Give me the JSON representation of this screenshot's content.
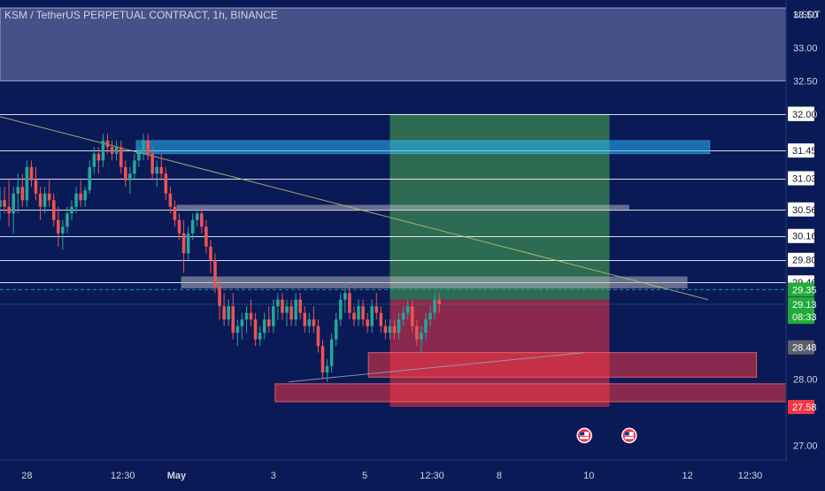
{
  "header": {
    "title": "KSM / TetherUS PERPETUAL CONTRACT, 1h, BINANCE",
    "currency": "USDT"
  },
  "colors": {
    "background": "#0a1a57",
    "bull": "#26a69a",
    "bear": "#ef5350",
    "profit_zone": "#4caf50",
    "stop_zone": "#f23645",
    "supply_zone": "#8d97c7",
    "grid_line": "#ffffff"
  },
  "chart_data": {
    "type": "candlestick",
    "title": "KSM / TetherUS PERPETUAL CONTRACT, 1h, BINANCE",
    "ylabel": "USDT",
    "ylim": [
      26.78,
      33.72
    ],
    "y_ticks": [
      "33.50",
      "33.00",
      "32.50",
      "32.00",
      "28.00",
      "27.00"
    ],
    "x_ticks": [
      "28",
      "12:30",
      "May",
      "3",
      "5",
      "12:30",
      "8",
      "10",
      "12",
      "12:30"
    ],
    "x_tick_bold": [
      "May"
    ],
    "x_tick_x": [
      0.3,
      11.0,
      17.0,
      27.8,
      38.0,
      45.5,
      53.0,
      63.0,
      74.0,
      81.0
    ],
    "xlim": [
      -2.7,
      85.0
    ],
    "price_markers": [
      {
        "label": "32.01",
        "value": 32.01,
        "style": "green"
      },
      {
        "label": "32.00",
        "value": 32.0,
        "style": "line"
      },
      {
        "label": "31.45",
        "value": 31.45,
        "style": "line"
      },
      {
        "label": "31.03",
        "value": 31.03,
        "style": "line"
      },
      {
        "label": "30.56",
        "value": 30.56,
        "style": "line"
      },
      {
        "label": "30.16",
        "value": 30.16,
        "style": "line"
      },
      {
        "label": "29.80",
        "value": 29.8,
        "style": "line"
      },
      {
        "label": "29.46",
        "value": 29.46,
        "style": "line"
      },
      {
        "label": "29.35",
        "value": 29.35,
        "style": "green"
      },
      {
        "label": "29.13",
        "value": 29.13,
        "style": "green"
      },
      {
        "label": "08:33",
        "value": 28.94,
        "style": "green"
      },
      {
        "label": "28.48",
        "value": 28.48,
        "style": "grey"
      },
      {
        "label": "27.58",
        "value": 27.58,
        "style": "red"
      }
    ],
    "horizontal_lines": [
      32.0,
      31.45,
      31.03,
      30.56,
      30.16,
      29.8,
      29.46
    ],
    "zones": [
      {
        "kind": "supply",
        "from": 32.5,
        "to": 33.6,
        "x": [
          -2.7,
          85.0
        ]
      },
      {
        "kind": "resistance",
        "from": 31.4,
        "to": 31.6,
        "x": [
          12.5,
          76.5
        ]
      },
      {
        "kind": "level",
        "from": 30.54,
        "to": 30.63,
        "x": [
          17.0,
          67.5
        ]
      },
      {
        "kind": "level",
        "from": 29.37,
        "to": 29.55,
        "x": [
          17.5,
          74.0
        ]
      },
      {
        "kind": "demand",
        "from": 28.03,
        "to": 28.4,
        "x": [
          38.4,
          81.7
        ]
      },
      {
        "kind": "demand",
        "from": 27.66,
        "to": 27.93,
        "x": [
          28.0,
          85.0
        ]
      }
    ],
    "position": {
      "type": "long",
      "x": [
        40.8,
        65.3
      ],
      "entry": 29.2,
      "target": 32.0,
      "stop": 27.58
    },
    "trendlines": [
      {
        "from": [
          -2.7,
          31.96
        ],
        "to": [
          76.3,
          29.2
        ]
      },
      {
        "from": [
          29.5,
          27.96
        ],
        "to": [
          62.5,
          28.4
        ]
      }
    ],
    "dashed_lines": [
      {
        "value": 29.35,
        "color": "#26a69a",
        "style": "dashed"
      },
      {
        "value": 29.13,
        "color": "#26a69a",
        "style": "dotted"
      }
    ],
    "event_icons": [
      {
        "x": 62.5,
        "value": 27.15
      },
      {
        "x": 67.5,
        "value": 27.15
      }
    ],
    "candles_x_start": -2.7,
    "candles_x_step": 0.5,
    "candles": [
      [
        30.6,
        30.9,
        30.4,
        30.7
      ],
      [
        30.7,
        30.9,
        30.5,
        30.6
      ],
      [
        30.6,
        31.0,
        30.3,
        30.5
      ],
      [
        30.5,
        30.9,
        30.2,
        30.8
      ],
      [
        30.8,
        31.1,
        30.5,
        30.9
      ],
      [
        30.9,
        31.1,
        30.6,
        30.7
      ],
      [
        30.7,
        31.3,
        30.6,
        31.2
      ],
      [
        31.2,
        31.3,
        30.9,
        31.0
      ],
      [
        31.0,
        31.2,
        30.7,
        30.8
      ],
      [
        30.8,
        30.9,
        30.4,
        30.6
      ],
      [
        30.6,
        30.9,
        30.5,
        30.8
      ],
      [
        30.8,
        31.0,
        30.6,
        30.7
      ],
      [
        30.7,
        30.8,
        30.3,
        30.4
      ],
      [
        30.4,
        30.6,
        30.0,
        30.2
      ],
      [
        30.2,
        30.4,
        29.95,
        30.3
      ],
      [
        30.3,
        30.6,
        30.2,
        30.5
      ],
      [
        30.5,
        30.7,
        30.4,
        30.6
      ],
      [
        30.6,
        30.9,
        30.5,
        30.8
      ],
      [
        30.8,
        31.0,
        30.6,
        30.7
      ],
      [
        30.7,
        30.9,
        30.6,
        30.85
      ],
      [
        30.85,
        31.3,
        30.8,
        31.2
      ],
      [
        31.2,
        31.5,
        31.1,
        31.4
      ],
      [
        31.4,
        31.5,
        31.1,
        31.3
      ],
      [
        31.3,
        31.7,
        31.2,
        31.6
      ],
      [
        31.6,
        31.7,
        31.4,
        31.5
      ],
      [
        31.5,
        31.6,
        31.3,
        31.4
      ],
      [
        31.4,
        31.6,
        31.3,
        31.5
      ],
      [
        31.5,
        31.6,
        31.1,
        31.2
      ],
      [
        31.2,
        31.3,
        30.9,
        31.0
      ],
      [
        31.0,
        31.2,
        30.8,
        31.1
      ],
      [
        31.1,
        31.4,
        31.0,
        31.3
      ],
      [
        31.3,
        31.5,
        31.2,
        31.4
      ],
      [
        31.4,
        31.7,
        31.3,
        31.6
      ],
      [
        31.6,
        31.7,
        31.3,
        31.4
      ],
      [
        31.4,
        31.5,
        31.0,
        31.1
      ],
      [
        31.1,
        31.3,
        30.9,
        31.2
      ],
      [
        31.2,
        31.4,
        31.0,
        31.1
      ],
      [
        31.1,
        31.2,
        30.7,
        30.8
      ],
      [
        30.8,
        30.9,
        30.5,
        30.6
      ],
      [
        30.6,
        30.7,
        30.3,
        30.4
      ],
      [
        30.4,
        30.5,
        30.1,
        30.2
      ],
      [
        30.2,
        30.4,
        29.6,
        29.9
      ],
      [
        29.9,
        30.3,
        29.8,
        30.2
      ],
      [
        30.2,
        30.5,
        30.1,
        30.4
      ],
      [
        30.4,
        30.6,
        30.3,
        30.5
      ],
      [
        30.5,
        30.6,
        30.2,
        30.3
      ],
      [
        30.3,
        30.4,
        29.9,
        30.0
      ],
      [
        30.0,
        30.1,
        29.6,
        29.8
      ],
      [
        29.8,
        29.9,
        29.3,
        29.4
      ],
      [
        29.4,
        29.5,
        28.9,
        29.1
      ],
      [
        29.1,
        29.3,
        28.8,
        28.9
      ],
      [
        28.9,
        29.2,
        28.8,
        29.1
      ],
      [
        29.1,
        29.3,
        28.6,
        28.7
      ],
      [
        28.7,
        28.9,
        28.5,
        28.8
      ],
      [
        28.8,
        29.0,
        28.6,
        28.9
      ],
      [
        28.9,
        29.1,
        28.7,
        29.0
      ],
      [
        29.0,
        29.2,
        28.8,
        28.9
      ],
      [
        28.9,
        29.0,
        28.5,
        28.6
      ],
      [
        28.6,
        28.8,
        28.5,
        28.7
      ],
      [
        28.7,
        29.0,
        28.6,
        28.9
      ],
      [
        28.9,
        29.1,
        28.7,
        28.8
      ],
      [
        28.8,
        29.2,
        28.7,
        29.1
      ],
      [
        29.1,
        29.3,
        28.9,
        29.2
      ],
      [
        29.2,
        29.3,
        28.9,
        29.0
      ],
      [
        29.0,
        29.2,
        28.8,
        29.1
      ],
      [
        29.1,
        29.2,
        28.8,
        28.9
      ],
      [
        28.9,
        29.3,
        28.8,
        29.2
      ],
      [
        29.2,
        29.3,
        28.9,
        29.0
      ],
      [
        29.0,
        29.1,
        28.7,
        28.8
      ],
      [
        28.8,
        29.0,
        28.7,
        28.9
      ],
      [
        28.9,
        29.1,
        28.7,
        28.8
      ],
      [
        28.8,
        28.9,
        28.4,
        28.5
      ],
      [
        28.5,
        28.6,
        28.0,
        28.1
      ],
      [
        28.1,
        28.3,
        27.96,
        28.2
      ],
      [
        28.2,
        28.7,
        28.1,
        28.6
      ],
      [
        28.6,
        29.0,
        28.5,
        28.9
      ],
      [
        28.9,
        29.3,
        28.8,
        29.2
      ],
      [
        29.2,
        29.46,
        29.0,
        29.3
      ],
      [
        29.3,
        29.4,
        28.9,
        29.0
      ],
      [
        29.0,
        29.1,
        28.8,
        28.9
      ],
      [
        28.9,
        29.2,
        28.8,
        29.1
      ],
      [
        29.1,
        29.2,
        28.8,
        28.9
      ],
      [
        28.9,
        29.0,
        28.7,
        28.8
      ],
      [
        28.8,
        29.2,
        28.7,
        29.1
      ],
      [
        29.1,
        29.3,
        28.9,
        29.0
      ],
      [
        29.0,
        29.1,
        28.7,
        28.8
      ],
      [
        28.8,
        28.9,
        28.6,
        28.7
      ],
      [
        28.7,
        28.9,
        28.6,
        28.8
      ],
      [
        28.8,
        28.9,
        28.6,
        28.7
      ],
      [
        28.7,
        29.0,
        28.6,
        28.9
      ],
      [
        28.9,
        29.1,
        28.8,
        29.0
      ],
      [
        29.0,
        29.2,
        28.9,
        29.1
      ],
      [
        29.1,
        29.2,
        28.7,
        28.8
      ],
      [
        28.8,
        28.9,
        28.5,
        28.6
      ],
      [
        28.6,
        28.8,
        28.4,
        28.7
      ],
      [
        28.7,
        29.0,
        28.6,
        28.9
      ],
      [
        28.9,
        29.1,
        28.8,
        29.0
      ],
      [
        29.0,
        29.3,
        28.9,
        29.2
      ],
      [
        29.2,
        29.3,
        29.0,
        29.13
      ]
    ]
  }
}
